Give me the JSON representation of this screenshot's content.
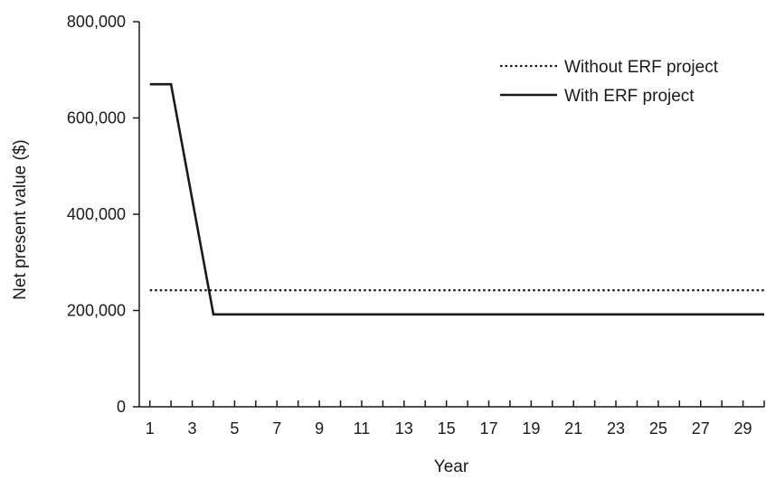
{
  "chart_data": {
    "type": "line",
    "title": "",
    "xlabel": "Year",
    "ylabel": "Net present value ($)",
    "xlim": [
      0.5,
      30
    ],
    "ylim": [
      0,
      800000
    ],
    "x_ticks": [
      1,
      2,
      3,
      4,
      5,
      6,
      7,
      8,
      9,
      10,
      11,
      12,
      13,
      14,
      15,
      16,
      17,
      18,
      19,
      20,
      21,
      22,
      23,
      24,
      25,
      26,
      27,
      28,
      29,
      30
    ],
    "x_tick_labels": [
      "1",
      "3",
      "5",
      "7",
      "9",
      "11",
      "13",
      "15",
      "17",
      "19",
      "21",
      "23",
      "25",
      "27",
      "29"
    ],
    "y_ticks": [
      0,
      200000,
      400000,
      600000,
      800000
    ],
    "y_tick_labels": [
      "0",
      "200,000",
      "400,000",
      "600,000",
      "800,000"
    ],
    "grid": false,
    "legend_position": "top-right",
    "series": [
      {
        "name": "Without ERF project",
        "style": "dotted",
        "color": "#1a1a1a",
        "x": [
          1,
          30
        ],
        "y": [
          242000,
          242000
        ]
      },
      {
        "name": "With ERF project",
        "style": "solid",
        "color": "#1a1a1a",
        "x": [
          1,
          2,
          4,
          30
        ],
        "y": [
          670000,
          670000,
          192000,
          192000
        ]
      }
    ]
  }
}
